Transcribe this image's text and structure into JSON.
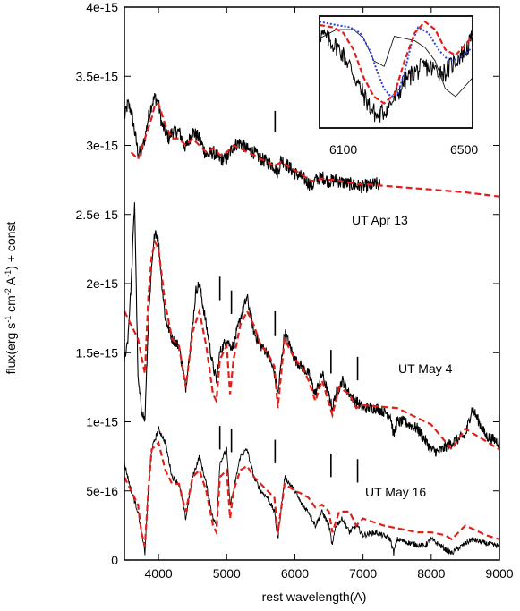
{
  "chart_data": {
    "type": "line",
    "title": "",
    "xlabel": "rest wavelength(A)",
    "ylabel": "flux(erg s^-1 cm^-2 A^-1) + const",
    "ylabel_parts": {
      "a": "flux(erg s",
      "b": "-1",
      "c": " cm",
      "d": "-2",
      "e": " A",
      "f": "-1",
      "g": ") + const"
    },
    "xlim": [
      3500,
      9000
    ],
    "ylim": [
      0,
      4e-15
    ],
    "x_ticks": [
      4000,
      5000,
      6000,
      7000,
      8000,
      9000
    ],
    "x_tick_labels": [
      "4000",
      "5000",
      "6000",
      "7000",
      "8000",
      "9000"
    ],
    "y_ticks": [
      0,
      5e-16,
      1e-15,
      1.5e-15,
      2e-15,
      2.5e-15,
      3e-15,
      3.5e-15,
      4e-15
    ],
    "y_tick_labels": [
      "0",
      "5e-16",
      "1e-15",
      "1.5e-15",
      "2e-15",
      "2.5e-15",
      "3e-15",
      "3.5e-15",
      "4e-15"
    ],
    "grid": false,
    "labels": {
      "apr13": "UT Apr 13",
      "may4": "UT May 4",
      "may16": "UT May 16"
    },
    "colors": {
      "observed": "#000000",
      "model": "#e0201b",
      "inset_blue": "#2a3fe0"
    },
    "series": [
      {
        "style": "observed-black",
        "noise": 5e-17,
        "x": [
          3500,
          3550,
          3600,
          3650,
          3700,
          3750,
          3800,
          3850,
          3900,
          3950,
          4000,
          4050,
          4100,
          4150,
          4200,
          4300,
          4400,
          4500,
          4600,
          4700,
          4800,
          4900,
          5000,
          5100,
          5200,
          5300,
          5400,
          5500,
          5600,
          5700,
          5750,
          5800,
          5900,
          6000,
          6100,
          6200,
          6250,
          6300,
          6400,
          6500,
          6600,
          6700,
          6800,
          6900,
          7000,
          7100,
          7200,
          7250
        ],
        "y": [
          3.2e-15,
          3.3e-15,
          3.25e-15,
          3.1e-15,
          2.95e-15,
          2.95e-15,
          3.05e-15,
          3.2e-15,
          3.3e-15,
          3.35e-15,
          3.3e-15,
          3.15e-15,
          3.1e-15,
          3.05e-15,
          3.1e-15,
          3.1e-15,
          2.98e-15,
          3.1e-15,
          3.05e-15,
          2.93e-15,
          2.95e-15,
          2.9e-15,
          2.9e-15,
          3e-15,
          3.02e-15,
          2.97e-15,
          2.95e-15,
          2.9e-15,
          2.88e-15,
          2.85e-15,
          2.8e-15,
          2.9e-15,
          2.85e-15,
          2.8e-15,
          2.77e-15,
          2.73e-15,
          2.7e-15,
          2.75e-15,
          2.77e-15,
          2.74e-15,
          2.75e-15,
          2.73e-15,
          2.72e-15,
          2.71e-15,
          2.7e-15,
          2.71e-15,
          2.72e-15,
          2.71e-15
        ]
      },
      {
        "style": "model-red",
        "x": [
          3600,
          3700,
          3800,
          3900,
          3950,
          4000,
          4100,
          4200,
          4300,
          4400,
          4500,
          4600,
          4700,
          4800,
          4900,
          5000,
          5100,
          5200,
          5300,
          5400,
          5500,
          5600,
          5700,
          5800,
          5900,
          6000,
          6100,
          6200,
          6300,
          6400,
          6500,
          6600,
          6700,
          6800,
          6900,
          7000,
          7500,
          8000,
          8500,
          9000
        ],
        "y": [
          2.95e-15,
          2.9e-15,
          3.05e-15,
          3.2e-15,
          3.3e-15,
          3.3e-15,
          3.15e-15,
          3.05e-15,
          3.05e-15,
          3e-15,
          3.05e-15,
          3e-15,
          2.95e-15,
          2.98e-15,
          2.93e-15,
          2.95e-15,
          3e-15,
          2.98e-15,
          2.95e-15,
          2.93e-15,
          2.9e-15,
          2.88e-15,
          2.85e-15,
          2.88e-15,
          2.85e-15,
          2.82e-15,
          2.79e-15,
          2.75e-15,
          2.74e-15,
          2.76e-15,
          2.75e-15,
          2.75e-15,
          2.74e-15,
          2.73e-15,
          2.72e-15,
          2.72e-15,
          2.7e-15,
          2.68e-15,
          2.66e-15,
          2.63e-15
        ]
      },
      {
        "style": "observed-black",
        "noise": 4e-17,
        "x": [
          3500,
          3550,
          3600,
          3650,
          3700,
          3750,
          3800,
          3850,
          3900,
          3950,
          4000,
          4050,
          4100,
          4200,
          4300,
          4400,
          4500,
          4550,
          4600,
          4700,
          4800,
          4850,
          4900,
          5000,
          5050,
          5100,
          5200,
          5300,
          5400,
          5500,
          5600,
          5700,
          5750,
          5850,
          6000,
          6200,
          6300,
          6400,
          6550,
          6600,
          6700,
          6800,
          6900,
          7000,
          7200,
          7400,
          7450,
          7500,
          7600,
          7800,
          8000,
          8100,
          8300,
          8500,
          8600,
          8800,
          9000
        ],
        "y": [
          1.45e-15,
          1.6e-15,
          2e-15,
          2.6e-15,
          1.3e-15,
          1.1e-15,
          1e-15,
          1.7e-15,
          2.1e-15,
          2.4e-15,
          2.3e-15,
          2e-15,
          1.75e-15,
          1.6e-15,
          1.55e-15,
          1.25e-15,
          1.7e-15,
          1.95e-15,
          2e-15,
          1.7e-15,
          1.4e-15,
          1.3e-15,
          1.5e-15,
          1.6e-15,
          1.55e-15,
          1.55e-15,
          1.75e-15,
          1.9e-15,
          1.65e-15,
          1.55e-15,
          1.5e-15,
          1.35e-15,
          1.2e-15,
          1.65e-15,
          1.45e-15,
          1.35e-15,
          1.2e-15,
          1.35e-15,
          1.1e-15,
          1.2e-15,
          1.3e-15,
          1.2e-15,
          1.15e-15,
          1.1e-15,
          1.1e-15,
          1.05e-15,
          9e-16,
          1e-15,
          1e-15,
          9.5e-16,
          8e-16,
          7.8e-16,
          8.5e-16,
          9e-16,
          1.1e-15,
          9e-16,
          8.5e-16
        ]
      },
      {
        "style": "model-red",
        "x": [
          3500,
          3600,
          3700,
          3800,
          3850,
          3900,
          3950,
          4000,
          4100,
          4200,
          4300,
          4400,
          4500,
          4600,
          4700,
          4800,
          4850,
          4900,
          5000,
          5050,
          5100,
          5200,
          5300,
          5400,
          5500,
          5600,
          5700,
          5750,
          5850,
          6000,
          6100,
          6200,
          6300,
          6400,
          6550,
          6650,
          6800,
          6900,
          7000,
          7500,
          8000,
          8300,
          8500,
          9000
        ],
        "y": [
          1.8e-15,
          1.7e-15,
          1.6e-15,
          1.35e-15,
          1.9e-15,
          2.2e-15,
          2.3e-15,
          2.25e-15,
          1.85e-15,
          1.6e-15,
          1.55e-15,
          1.25e-15,
          1.65e-15,
          1.8e-15,
          1.55e-15,
          1.2e-15,
          1.15e-15,
          1.45e-15,
          1.55e-15,
          1.2e-15,
          1.45e-15,
          1.7e-15,
          1.8e-15,
          1.7e-15,
          1.55e-15,
          1.5e-15,
          1.4e-15,
          1.1e-15,
          1.6e-15,
          1.45e-15,
          1.4e-15,
          1.3e-15,
          1.15e-15,
          1.3e-15,
          1.05e-15,
          1.25e-15,
          1.2e-15,
          1.1e-15,
          1.12e-15,
          1.1e-15,
          9.8e-16,
          8e-16,
          9.5e-16,
          8e-16
        ]
      },
      {
        "style": "observed-thin",
        "noise": 2e-17,
        "x": [
          3500,
          3600,
          3700,
          3800,
          3850,
          3900,
          4000,
          4100,
          4200,
          4300,
          4400,
          4500,
          4600,
          4700,
          4800,
          4850,
          4900,
          5000,
          5050,
          5100,
          5200,
          5300,
          5400,
          5500,
          5600,
          5700,
          5750,
          5850,
          6000,
          6100,
          6200,
          6300,
          6400,
          6500,
          6550,
          6600,
          6700,
          6800,
          6900,
          7000,
          7200,
          7400,
          7450,
          7500,
          7700,
          7900,
          8000,
          8200,
          8300,
          8500,
          8600,
          8800,
          9000
        ],
        "y": [
          7e-16,
          5e-16,
          3.5e-16,
          5e-17,
          5e-16,
          8e-16,
          9.5e-16,
          8.5e-16,
          6e-16,
          5.5e-16,
          3e-16,
          6e-16,
          7.5e-16,
          5.5e-16,
          3e-16,
          2.5e-16,
          7e-16,
          8e-16,
          4e-16,
          5e-16,
          7.5e-16,
          8e-16,
          6e-16,
          5e-16,
          4.5e-16,
          3.5e-16,
          1.5e-16,
          6e-16,
          5e-16,
          4e-16,
          3.5e-16,
          2.5e-16,
          3.5e-16,
          2.5e-16,
          1e-16,
          2.5e-16,
          3e-16,
          2e-16,
          2.5e-16,
          1.8e-16,
          2e-16,
          1.5e-16,
          5e-17,
          1.5e-16,
          1.2e-16,
          1e-16,
          1.5e-16,
          8e-17,
          5e-17,
          1.2e-16,
          1.5e-16,
          1.2e-16,
          1e-16
        ]
      },
      {
        "style": "model-red",
        "x": [
          3500,
          3600,
          3700,
          3750,
          3800,
          3850,
          3900,
          4000,
          4100,
          4200,
          4300,
          4400,
          4500,
          4600,
          4700,
          4800,
          4850,
          4900,
          5000,
          5050,
          5100,
          5200,
          5300,
          5400,
          5500,
          5600,
          5700,
          5750,
          5850,
          6000,
          6100,
          6200,
          6300,
          6400,
          6500,
          6550,
          6650,
          6800,
          6900,
          7000,
          7300,
          7500,
          7800,
          8000,
          8200,
          8300,
          8500,
          8800,
          9000
        ],
        "y": [
          6e-16,
          5e-16,
          4e-16,
          2e-16,
          1e-16,
          5e-16,
          8e-16,
          8.5e-16,
          6.5e-16,
          5.5e-16,
          5.5e-16,
          3.5e-16,
          6e-16,
          6.5e-16,
          5e-16,
          2.5e-16,
          2e-16,
          6e-16,
          6.5e-16,
          3e-16,
          5e-16,
          6.5e-16,
          6.8e-16,
          6e-16,
          5.5e-16,
          5e-16,
          4.5e-16,
          2e-16,
          5.5e-16,
          5e-16,
          4.8e-16,
          4.5e-16,
          3.8e-16,
          4e-16,
          3.5e-16,
          2e-16,
          3.5e-16,
          3.5e-16,
          2.5e-16,
          3e-16,
          2.5e-16,
          2.3e-16,
          2e-16,
          2e-16,
          1.8e-16,
          1.5e-16,
          2.5e-16,
          1.8e-16,
          1.5e-16
        ]
      }
    ],
    "line_markers": [
      {
        "x": 5710,
        "y1": 3.1e-15,
        "y2": 3.25e-15
      },
      {
        "x": 4900,
        "y1": 1.88e-15,
        "y2": 2.05e-15
      },
      {
        "x": 5070,
        "y1": 1.78e-15,
        "y2": 1.95e-15
      },
      {
        "x": 5710,
        "y1": 1.62e-15,
        "y2": 1.8e-15
      },
      {
        "x": 6530,
        "y1": 1.35e-15,
        "y2": 1.52e-15
      },
      {
        "x": 6920,
        "y1": 1.3e-15,
        "y2": 1.47e-15
      },
      {
        "x": 4900,
        "y1": 8e-16,
        "y2": 9.7e-16
      },
      {
        "x": 5070,
        "y1": 7.8e-16,
        "y2": 9.5e-16
      },
      {
        "x": 5710,
        "y1": 7e-16,
        "y2": 8.7e-16
      },
      {
        "x": 6530,
        "y1": 6e-16,
        "y2": 7.7e-16
      },
      {
        "x": 6920,
        "y1": 5.6e-16,
        "y2": 7.3e-16
      }
    ],
    "inset": {
      "xlim": [
        6050,
        6500
      ],
      "tick_labels": [
        "6100",
        "6500"
      ],
      "series": [
        {
          "style": "inset-black-noisy",
          "x": [
            6050,
            6080,
            6110,
            6140,
            6170,
            6200,
            6220,
            6240,
            6260,
            6280,
            6300,
            6330,
            6360,
            6390,
            6420,
            6450,
            6480,
            6500
          ],
          "y": [
            0.85,
            0.78,
            0.7,
            0.55,
            0.35,
            0.18,
            0.1,
            0.15,
            0.22,
            0.3,
            0.42,
            0.5,
            0.55,
            0.52,
            0.5,
            0.6,
            0.7,
            0.8
          ]
        },
        {
          "style": "inset-black-thin",
          "x": [
            6050,
            6100,
            6150,
            6180,
            6210,
            6240,
            6270,
            6300,
            6330,
            6360,
            6390,
            6420,
            6450,
            6480,
            6500
          ],
          "y": [
            0.8,
            0.88,
            0.88,
            0.8,
            0.6,
            0.55,
            0.82,
            0.8,
            0.78,
            0.72,
            0.6,
            0.35,
            0.28,
            0.38,
            0.45
          ]
        },
        {
          "style": "inset-blue-dotted",
          "x": [
            6050,
            6100,
            6140,
            6170,
            6200,
            6220,
            6240,
            6260,
            6280,
            6300,
            6320,
            6340,
            6370,
            6400,
            6430,
            6460,
            6500
          ],
          "y": [
            0.95,
            0.92,
            0.9,
            0.85,
            0.68,
            0.5,
            0.35,
            0.28,
            0.3,
            0.5,
            0.75,
            0.9,
            0.85,
            0.7,
            0.6,
            0.62,
            0.72
          ]
        },
        {
          "style": "inset-red-dashed",
          "x": [
            6050,
            6090,
            6120,
            6150,
            6180,
            6210,
            6240,
            6270,
            6300,
            6330,
            6360,
            6390,
            6420,
            6450,
            6480,
            6500
          ],
          "y": [
            0.92,
            0.9,
            0.85,
            0.7,
            0.45,
            0.28,
            0.22,
            0.3,
            0.6,
            0.85,
            0.95,
            0.88,
            0.7,
            0.65,
            0.75,
            0.82
          ]
        }
      ]
    }
  }
}
